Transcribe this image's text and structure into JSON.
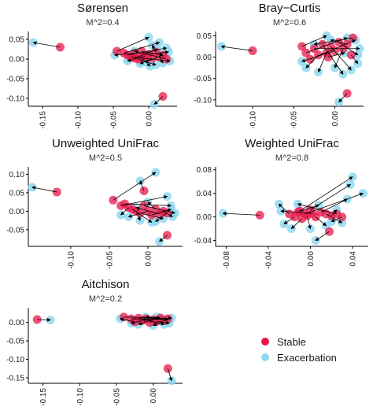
{
  "colors": {
    "stable": "#E8174A",
    "exacerbation": "#8FD8F0",
    "arrow": "#000000",
    "axis": "#000000"
  },
  "legend": {
    "stable": "Stable",
    "exacerbation": "Exacerbation"
  },
  "chart_data": [
    {
      "type": "scatter",
      "title": "Sørensen",
      "subtitle": "M^2=0.4",
      "xlim": [
        -0.17,
        0.04
      ],
      "ylim": [
        -0.12,
        0.07
      ],
      "xticks": [
        -0.15,
        -0.1,
        -0.05,
        0.0
      ],
      "xtick_labels": [
        "-0.15",
        "-0.10",
        "-0.05",
        "0.00"
      ],
      "yticks": [
        0.05,
        0.0,
        -0.05,
        -0.1
      ],
      "ytick_labels": [
        "0.05",
        "0.00",
        "-0.05",
        "-0.10"
      ],
      "pairs": [
        {
          "stable": [
            -0.125,
            0.03
          ],
          "exac": [
            -0.163,
            0.042
          ]
        },
        {
          "stable": [
            0.02,
            -0.095
          ],
          "exac": [
            0.008,
            -0.115
          ]
        },
        {
          "stable": [
            -0.045,
            0.02
          ],
          "exac": [
            0.0,
            0.055
          ]
        },
        {
          "stable": [
            -0.035,
            0.015
          ],
          "exac": [
            0.015,
            0.042
          ]
        },
        {
          "stable": [
            -0.03,
            0.01
          ],
          "exac": [
            0.025,
            0.028
          ]
        },
        {
          "stable": [
            -0.025,
            0.005
          ],
          "exac": [
            0.03,
            -0.005
          ]
        },
        {
          "stable": [
            -0.02,
            0.015
          ],
          "exac": [
            -0.048,
            0.01
          ]
        },
        {
          "stable": [
            -0.015,
            0.0
          ],
          "exac": [
            0.01,
            -0.015
          ]
        },
        {
          "stable": [
            -0.01,
            0.02
          ],
          "exac": [
            0.02,
            0.01
          ]
        },
        {
          "stable": [
            -0.005,
            0.008
          ],
          "exac": [
            -0.03,
            -0.005
          ]
        },
        {
          "stable": [
            0.0,
            0.012
          ],
          "exac": [
            0.028,
            0.018
          ]
        },
        {
          "stable": [
            0.005,
            0.002
          ],
          "exac": [
            -0.012,
            -0.012
          ]
        },
        {
          "stable": [
            0.01,
            0.018
          ],
          "exac": [
            0.005,
            0.035
          ]
        },
        {
          "stable": [
            0.015,
            0.005
          ],
          "exac": [
            0.02,
            -0.01
          ]
        },
        {
          "stable": [
            0.02,
            0.01
          ],
          "exac": [
            -0.005,
            -0.008
          ]
        },
        {
          "stable": [
            -0.02,
            0.002
          ],
          "exac": [
            0.012,
            0.025
          ]
        },
        {
          "stable": [
            0.025,
            0.0
          ],
          "exac": [
            -0.02,
            0.02
          ]
        },
        {
          "stable": [
            -0.01,
            0.003
          ],
          "exac": [
            0.002,
            -0.018
          ]
        }
      ]
    },
    {
      "type": "scatter",
      "title": "Bray−Curtis",
      "subtitle": "M^2=0.6",
      "xlim": [
        -0.145,
        0.035
      ],
      "ylim": [
        -0.115,
        0.06
      ],
      "xticks": [
        -0.1,
        -0.05,
        0.0
      ],
      "xtick_labels": [
        "-0.10",
        "-0.05",
        "0.00"
      ],
      "yticks": [
        0.05,
        0.0,
        -0.05,
        -0.1
      ],
      "ytick_labels": [
        "0.05",
        "0.00",
        "-0.05",
        "-0.10"
      ],
      "pairs": [
        {
          "stable": [
            -0.1,
            0.015
          ],
          "exac": [
            -0.138,
            0.025
          ]
        },
        {
          "stable": [
            0.015,
            -0.085
          ],
          "exac": [
            0.005,
            -0.105
          ]
        },
        {
          "stable": [
            -0.04,
            0.025
          ],
          "exac": [
            -0.01,
            0.05
          ]
        },
        {
          "stable": [
            -0.035,
            0.01
          ],
          "exac": [
            0.015,
            0.045
          ]
        },
        {
          "stable": [
            -0.03,
            -0.005
          ],
          "exac": [
            0.025,
            0.04
          ]
        },
        {
          "stable": [
            -0.025,
            0.02
          ],
          "exac": [
            0.03,
            0.02
          ]
        },
        {
          "stable": [
            -0.02,
            0.005
          ],
          "exac": [
            -0.035,
            -0.025
          ]
        },
        {
          "stable": [
            -0.015,
            0.03
          ],
          "exac": [
            0.01,
            -0.04
          ]
        },
        {
          "stable": [
            -0.01,
            0.01
          ],
          "exac": [
            -0.02,
            -0.035
          ]
        },
        {
          "stable": [
            -0.005,
            0.025
          ],
          "exac": [
            0.02,
            -0.03
          ]
        },
        {
          "stable": [
            0.0,
            0.015
          ],
          "exac": [
            -0.04,
            -0.01
          ]
        },
        {
          "stable": [
            0.005,
            0.035
          ],
          "exac": [
            0.028,
            0.005
          ]
        },
        {
          "stable": [
            0.01,
            0.02
          ],
          "exac": [
            0.0,
            -0.025
          ]
        },
        {
          "stable": [
            0.015,
            0.03
          ],
          "exac": [
            -0.005,
            0.04
          ]
        },
        {
          "stable": [
            0.02,
            0.005
          ],
          "exac": [
            0.028,
            -0.015
          ]
        },
        {
          "stable": [
            -0.008,
            0.0
          ],
          "exac": [
            0.012,
            0.01
          ]
        },
        {
          "stable": [
            0.022,
            0.045
          ],
          "exac": [
            -0.025,
            0.03
          ]
        }
      ]
    },
    {
      "type": "scatter",
      "title": "Unweighted UniFrac",
      "subtitle": "M^2=0.5",
      "xlim": [
        -0.155,
        0.045
      ],
      "ylim": [
        -0.095,
        0.12
      ],
      "xticks": [
        -0.1,
        -0.05,
        0.0
      ],
      "xtick_labels": [
        "-0.10",
        "-0.05",
        "0.00"
      ],
      "yticks": [
        0.1,
        0.05,
        0.0,
        -0.05
      ],
      "ytick_labels": [
        "0.10",
        "0.05",
        "0.00",
        "-0.05"
      ],
      "pairs": [
        {
          "stable": [
            -0.118,
            0.052
          ],
          "exac": [
            -0.15,
            0.065
          ]
        },
        {
          "stable": [
            0.025,
            -0.065
          ],
          "exac": [
            0.015,
            -0.082
          ]
        },
        {
          "stable": [
            -0.045,
            0.03
          ],
          "exac": [
            0.01,
            0.105
          ]
        },
        {
          "stable": [
            -0.005,
            0.055
          ],
          "exac": [
            -0.01,
            0.082
          ]
        },
        {
          "stable": [
            -0.035,
            0.015
          ],
          "exac": [
            0.025,
            0.04
          ]
        },
        {
          "stable": [
            -0.03,
            0.02
          ],
          "exac": [
            0.03,
            0.015
          ]
        },
        {
          "stable": [
            -0.025,
            0.01
          ],
          "exac": [
            -0.035,
            -0.01
          ]
        },
        {
          "stable": [
            -0.02,
            0.005
          ],
          "exac": [
            0.005,
            -0.03
          ]
        },
        {
          "stable": [
            -0.015,
            0.0
          ],
          "exac": [
            -0.01,
            -0.025
          ]
        },
        {
          "stable": [
            -0.01,
            -0.005
          ],
          "exac": [
            0.02,
            -0.02
          ]
        },
        {
          "stable": [
            -0.005,
            0.015
          ],
          "exac": [
            0.035,
            -0.005
          ]
        },
        {
          "stable": [
            0.0,
            0.0
          ],
          "exac": [
            -0.025,
            -0.015
          ]
        },
        {
          "stable": [
            0.005,
            -0.01
          ],
          "exac": [
            0.03,
            0.005
          ]
        },
        {
          "stable": [
            0.01,
            0.005
          ],
          "exac": [
            0.0,
            0.025
          ]
        },
        {
          "stable": [
            0.015,
            -0.008
          ],
          "exac": [
            -0.015,
            0.01
          ]
        },
        {
          "stable": [
            0.02,
            0.0
          ],
          "exac": [
            0.032,
            -0.015
          ]
        },
        {
          "stable": [
            0.025,
            -0.005
          ],
          "exac": [
            0.01,
            -0.028
          ]
        }
      ]
    },
    {
      "type": "scatter",
      "title": "Weighted UniFrac",
      "subtitle": "M^2=0.8",
      "xlim": [
        -0.09,
        0.055
      ],
      "ylim": [
        -0.05,
        0.085
      ],
      "xticks": [
        -0.08,
        -0.04,
        0.0,
        0.04
      ],
      "xtick_labels": [
        "-0.08",
        "-0.04",
        "0.00",
        "0.04"
      ],
      "yticks": [
        0.08,
        0.04,
        0.0,
        -0.04
      ],
      "ytick_labels": [
        "0.08",
        "0.04",
        "0.00",
        "-0.04"
      ],
      "pairs": [
        {
          "stable": [
            -0.048,
            0.003
          ],
          "exac": [
            -0.083,
            0.006
          ]
        },
        {
          "stable": [
            0.018,
            -0.025
          ],
          "exac": [
            0.005,
            -0.04
          ]
        },
        {
          "stable": [
            -0.01,
            0.01
          ],
          "exac": [
            0.04,
            0.068
          ]
        },
        {
          "stable": [
            -0.005,
            0.005
          ],
          "exac": [
            0.05,
            0.04
          ]
        },
        {
          "stable": [
            0.0,
            0.012
          ],
          "exac": [
            0.038,
            0.055
          ]
        },
        {
          "stable": [
            0.01,
            0.008
          ],
          "exac": [
            0.035,
            0.03
          ]
        },
        {
          "stable": [
            -0.02,
            0.005
          ],
          "exac": [
            -0.03,
            0.022
          ]
        },
        {
          "stable": [
            -0.015,
            0.0
          ],
          "exac": [
            -0.025,
            -0.012
          ]
        },
        {
          "stable": [
            -0.008,
            -0.003
          ],
          "exac": [
            -0.018,
            -0.02
          ]
        },
        {
          "stable": [
            -0.003,
            0.002
          ],
          "exac": [
            0.0,
            -0.02
          ]
        },
        {
          "stable": [
            0.005,
            0.0
          ],
          "exac": [
            0.015,
            -0.015
          ]
        },
        {
          "stable": [
            0.015,
            0.005
          ],
          "exac": [
            0.03,
            -0.01
          ]
        },
        {
          "stable": [
            0.02,
            0.002
          ],
          "exac": [
            0.025,
            0.012
          ]
        },
        {
          "stable": [
            0.025,
            0.005
          ],
          "exac": [
            -0.012,
            0.022
          ]
        },
        {
          "stable": [
            -0.012,
            0.008
          ],
          "exac": [
            0.008,
            0.02
          ]
        },
        {
          "stable": [
            0.002,
            0.006
          ],
          "exac": [
            -0.028,
            0.01
          ]
        },
        {
          "stable": [
            0.03,
            0.0
          ],
          "exac": [
            0.02,
            -0.008
          ]
        }
      ]
    },
    {
      "type": "scatter",
      "title": "Aitchison",
      "subtitle": "M^2=0.2",
      "xlim": [
        -0.17,
        0.04
      ],
      "ylim": [
        -0.165,
        0.04
      ],
      "xticks": [
        -0.15,
        -0.1,
        -0.05,
        0.0
      ],
      "xtick_labels": [
        "-0.15",
        "-0.10",
        "-0.05",
        "0.00"
      ],
      "yticks": [
        0.0,
        -0.05,
        -0.1,
        -0.15
      ],
      "ytick_labels": [
        "0.00",
        "-0.05",
        "-0.10",
        "-0.15"
      ],
      "pairs": [
        {
          "stable": [
            -0.158,
            0.008
          ],
          "exac": [
            -0.14,
            0.007
          ]
        },
        {
          "stable": [
            0.02,
            -0.125
          ],
          "exac": [
            0.025,
            -0.158
          ]
        },
        {
          "stable": [
            -0.04,
            0.015
          ],
          "exac": [
            0.01,
            0.012
          ]
        },
        {
          "stable": [
            -0.03,
            0.01
          ],
          "exac": [
            0.02,
            0.008
          ]
        },
        {
          "stable": [
            -0.025,
            0.002
          ],
          "exac": [
            -0.045,
            0.01
          ]
        },
        {
          "stable": [
            -0.02,
            0.012
          ],
          "exac": [
            0.015,
            -0.005
          ]
        },
        {
          "stable": [
            -0.015,
            0.005
          ],
          "exac": [
            -0.03,
            -0.002
          ]
        },
        {
          "stable": [
            -0.01,
            0.01
          ],
          "exac": [
            0.025,
            0.012
          ]
        },
        {
          "stable": [
            -0.005,
            0.0
          ],
          "exac": [
            0.005,
            0.015
          ]
        },
        {
          "stable": [
            0.0,
            0.008
          ],
          "exac": [
            -0.02,
            -0.005
          ]
        },
        {
          "stable": [
            0.005,
            0.003
          ],
          "exac": [
            0.022,
            -0.002
          ]
        },
        {
          "stable": [
            0.01,
            0.012
          ],
          "exac": [
            -0.01,
            0.015
          ]
        },
        {
          "stable": [
            0.015,
            0.005
          ],
          "exac": [
            0.0,
            -0.008
          ]
        },
        {
          "stable": [
            0.02,
            0.01
          ],
          "exac": [
            -0.015,
            0.008
          ]
        }
      ]
    }
  ]
}
